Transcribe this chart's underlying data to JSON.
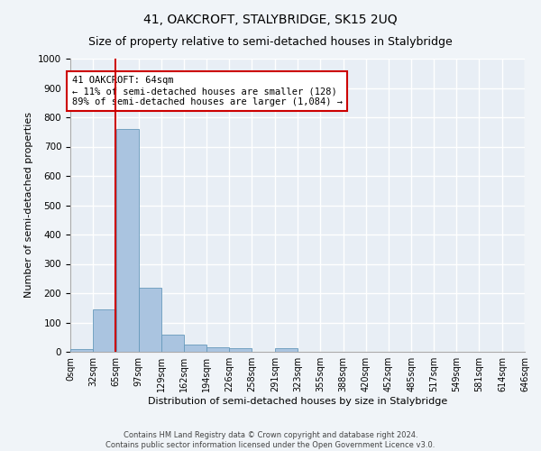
{
  "title": "41, OAKCROFT, STALYBRIDGE, SK15 2UQ",
  "subtitle": "Size of property relative to semi-detached houses in Stalybridge",
  "xlabel": "Distribution of semi-detached houses by size in Stalybridge",
  "ylabel": "Number of semi-detached properties",
  "bin_edges": [
    0,
    32,
    65,
    97,
    129,
    162,
    194,
    226,
    258,
    291,
    323,
    355,
    388,
    420,
    452,
    485,
    517,
    549,
    581,
    614,
    646
  ],
  "bar_values": [
    8,
    145,
    760,
    218,
    57,
    25,
    14,
    12,
    0,
    13,
    0,
    0,
    0,
    0,
    0,
    0,
    0,
    0,
    0,
    0
  ],
  "bar_color": "#aac4e0",
  "bar_edgecolor": "#6699bb",
  "property_size": 64,
  "vline_color": "#cc0000",
  "annotation_text": "41 OAKCROFT: 64sqm\n← 11% of semi-detached houses are smaller (128)\n89% of semi-detached houses are larger (1,084) →",
  "annotation_box_color": "#ffffff",
  "annotation_box_edgecolor": "#cc0000",
  "ylim": [
    0,
    1000
  ],
  "yticks": [
    0,
    100,
    200,
    300,
    400,
    500,
    600,
    700,
    800,
    900,
    1000
  ],
  "footer_line1": "Contains HM Land Registry data © Crown copyright and database right 2024.",
  "footer_line2": "Contains public sector information licensed under the Open Government Licence v3.0.",
  "bg_color": "#e8eef5",
  "grid_color": "#ffffff",
  "fig_bg_color": "#f0f4f8",
  "title_fontsize": 10,
  "subtitle_fontsize": 9,
  "tick_label_fontsize": 7,
  "ylabel_fontsize": 8,
  "xlabel_fontsize": 8,
  "annotation_fontsize": 7.5,
  "footer_fontsize": 6
}
